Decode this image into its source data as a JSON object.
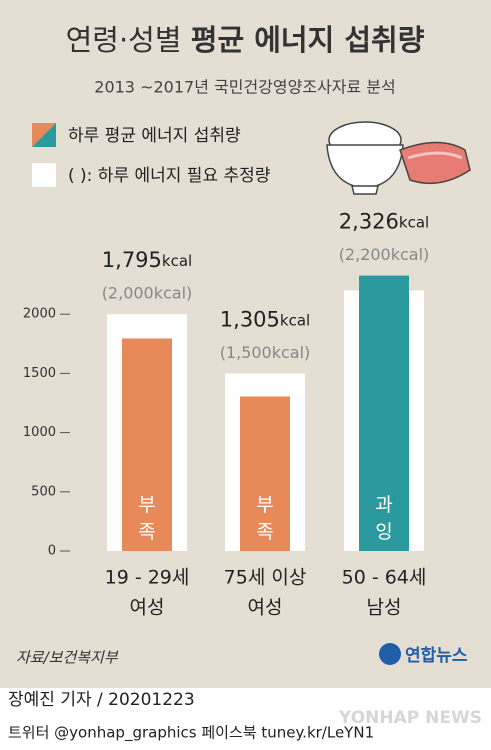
{
  "chart_data": {
    "type": "bar",
    "title": {
      "regular": "연령·성별",
      "bold": "평균 에너지 섭취량"
    },
    "subtitle": "2013 ~2017년 국민건강영양조사자료 분석",
    "categories": [
      [
        "19 - 29세",
        "여성"
      ],
      [
        "75세 이상",
        "여성"
      ],
      [
        "50 - 64세",
        "남성"
      ]
    ],
    "series": [
      {
        "name": "( ): 하루 에너지 필요 추정량",
        "color": "#ffffff",
        "values": [
          2000,
          1500,
          2200
        ],
        "value_labels": [
          "(2,000kcal)",
          "(1,500kcal)",
          "(2,200kcal)"
        ]
      },
      {
        "name": "하루 평균 에너지 섭취량",
        "colors": [
          "#e8895a",
          "#e8895a",
          "#2a9a9e"
        ],
        "values": [
          1795,
          1305,
          2326
        ],
        "value_labels": [
          "1,795kcal",
          "1,305kcal",
          "2,326kcal"
        ],
        "status": [
          "부족",
          "부족",
          "과잉"
        ]
      }
    ],
    "ylim": [
      0,
      2500
    ],
    "yticks": [
      0,
      500,
      1000,
      1500,
      2000
    ],
    "source": "자료/보건복지부",
    "logo": "연합뉴스",
    "footer": {
      "byline": "장예진 기자 / 20201223",
      "links": "트위터 @yonhap_graphics  페이스북 tuney.kr/LeYN1",
      "watermark": "YONHAP NEWS"
    }
  }
}
